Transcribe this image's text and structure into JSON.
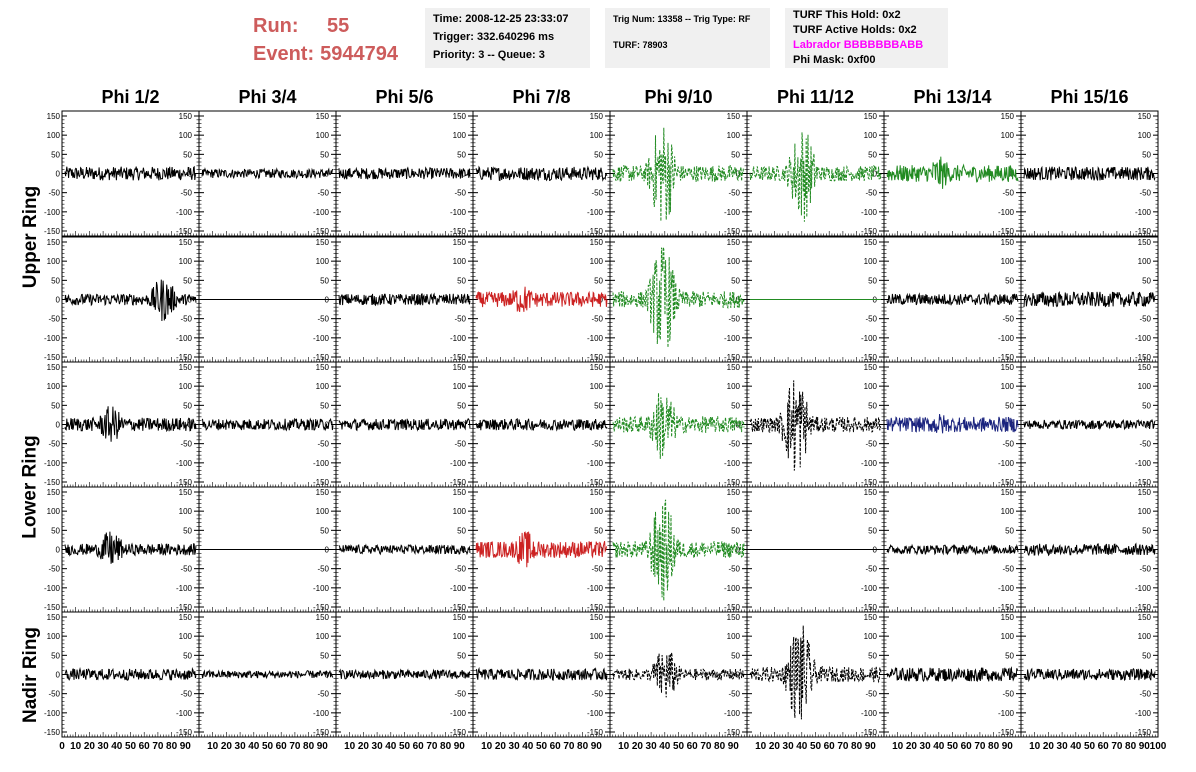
{
  "header": {
    "run_label": "Run:",
    "run_value": "55",
    "event_label": "Event:",
    "event_value": "5944794",
    "time_line": "Time: 2008-12-25 23:33:07",
    "trigger_line": "Trigger: 332.640296 ms",
    "priority_line": "Priority: 3 -- Queue: 3",
    "trig_line": "Trig Num: 13358 -- Trig Type: RF",
    "turf_line": "TURF: 78903",
    "turf_hold_line": "TURF This Hold: 0x2",
    "turf_active_line": "TURF Active Holds: 0x2",
    "labrador_line": "Labrador BBBBBBBABB",
    "phi_mask_line": "Phi Mask: 0xf00"
  },
  "columns": [
    "Phi 1/2",
    "Phi 3/4",
    "Phi 5/6",
    "Phi 7/8",
    "Phi 9/10",
    "Phi 11/12",
    "Phi 13/14",
    "Phi 15/16"
  ],
  "rows": [
    "Upper Ring",
    "Lower Ring",
    "Nadir Ring"
  ],
  "colors": {
    "black": "#000000",
    "green": "#228b22",
    "red": "#cc2222",
    "blue": "#1a237e"
  },
  "chart_data": {
    "type": "line",
    "title": "",
    "xlabel": "",
    "ylabel": "",
    "xlim": [
      0,
      100
    ],
    "ylim": [
      -150,
      150
    ],
    "yticks": [
      -150,
      -100,
      -50,
      0,
      50,
      100,
      150
    ],
    "xticks": [
      0,
      10,
      20,
      30,
      40,
      50,
      60,
      70,
      80,
      90,
      100
    ],
    "grid": false,
    "panel_rows": 5,
    "panel_cols": 8,
    "panels": [
      [
        {
          "style": "black",
          "amp": 18,
          "burst": null,
          "dashed": false
        },
        {
          "style": "black",
          "amp": 12,
          "burst": null,
          "dashed": false
        },
        {
          "style": "black",
          "amp": 15,
          "burst": null,
          "dashed": false
        },
        {
          "style": "black",
          "amp": 18,
          "burst": null,
          "dashed": false
        },
        {
          "style": "green",
          "amp": 22,
          "burst": {
            "center": 38,
            "peak": 145
          },
          "dashed": true
        },
        {
          "style": "green",
          "amp": 20,
          "burst": {
            "center": 40,
            "peak": 130
          },
          "dashed": true
        },
        {
          "style": "green",
          "amp": 22,
          "burst": {
            "center": 40,
            "peak": 45
          },
          "dashed": false
        },
        {
          "style": "black",
          "amp": 18,
          "burst": null,
          "dashed": false
        }
      ],
      [
        {
          "style": "black",
          "amp": 15,
          "burst": {
            "center": 75,
            "peak": 60
          },
          "dashed": false
        },
        {
          "style": "black",
          "amp": 0,
          "burst": null,
          "dashed": false
        },
        {
          "style": "black",
          "amp": 15,
          "burst": null,
          "dashed": false
        },
        {
          "style": "red",
          "amp": 20,
          "burst": {
            "center": 35,
            "peak": 40
          },
          "dashed": false
        },
        {
          "style": "green",
          "amp": 22,
          "burst": {
            "center": 38,
            "peak": 150
          },
          "dashed": true
        },
        {
          "style": "green",
          "amp": 0,
          "burst": null,
          "dashed": false
        },
        {
          "style": "black",
          "amp": 15,
          "burst": null,
          "dashed": false
        },
        {
          "style": "black",
          "amp": 20,
          "burst": null,
          "dashed": false
        }
      ],
      [
        {
          "style": "black",
          "amp": 18,
          "burst": {
            "center": 35,
            "peak": 50
          },
          "dashed": false
        },
        {
          "style": "black",
          "amp": 15,
          "burst": null,
          "dashed": false
        },
        {
          "style": "black",
          "amp": 15,
          "burst": null,
          "dashed": false
        },
        {
          "style": "black",
          "amp": 15,
          "burst": null,
          "dashed": false
        },
        {
          "style": "green",
          "amp": 22,
          "burst": {
            "center": 38,
            "peak": 100
          },
          "dashed": true
        },
        {
          "style": "black",
          "amp": 20,
          "burst": {
            "center": 35,
            "peak": 140
          },
          "dashed": true
        },
        {
          "style": "blue",
          "amp": 20,
          "burst": {
            "center": 40,
            "peak": 30
          },
          "dashed": false
        },
        {
          "style": "black",
          "amp": 12,
          "burst": null,
          "dashed": false
        }
      ],
      [
        {
          "style": "black",
          "amp": 15,
          "burst": {
            "center": 35,
            "peak": 50
          },
          "dashed": false
        },
        {
          "style": "black",
          "amp": 0,
          "burst": null,
          "dashed": false
        },
        {
          "style": "black",
          "amp": 12,
          "burst": null,
          "dashed": false
        },
        {
          "style": "red",
          "amp": 22,
          "burst": {
            "center": 38,
            "peak": 50
          },
          "dashed": false
        },
        {
          "style": "green",
          "amp": 22,
          "burst": {
            "center": 38,
            "peak": 140
          },
          "dashed": true
        },
        {
          "style": "black",
          "amp": 0,
          "burst": null,
          "dashed": false
        },
        {
          "style": "black",
          "amp": 12,
          "burst": null,
          "dashed": false
        },
        {
          "style": "black",
          "amp": 15,
          "burst": null,
          "dashed": false
        }
      ],
      [
        {
          "style": "black",
          "amp": 15,
          "burst": null,
          "dashed": false
        },
        {
          "style": "black",
          "amp": 10,
          "burst": null,
          "dashed": false
        },
        {
          "style": "black",
          "amp": 12,
          "burst": null,
          "dashed": false
        },
        {
          "style": "black",
          "amp": 15,
          "burst": null,
          "dashed": false
        },
        {
          "style": "black",
          "amp": 15,
          "burst": {
            "center": 40,
            "peak": 75
          },
          "dashed": true
        },
        {
          "style": "black",
          "amp": 20,
          "burst": {
            "center": 38,
            "peak": 140
          },
          "dashed": true
        },
        {
          "style": "black",
          "amp": 18,
          "burst": null,
          "dashed": false
        },
        {
          "style": "black",
          "amp": 15,
          "burst": null,
          "dashed": false
        }
      ]
    ]
  }
}
